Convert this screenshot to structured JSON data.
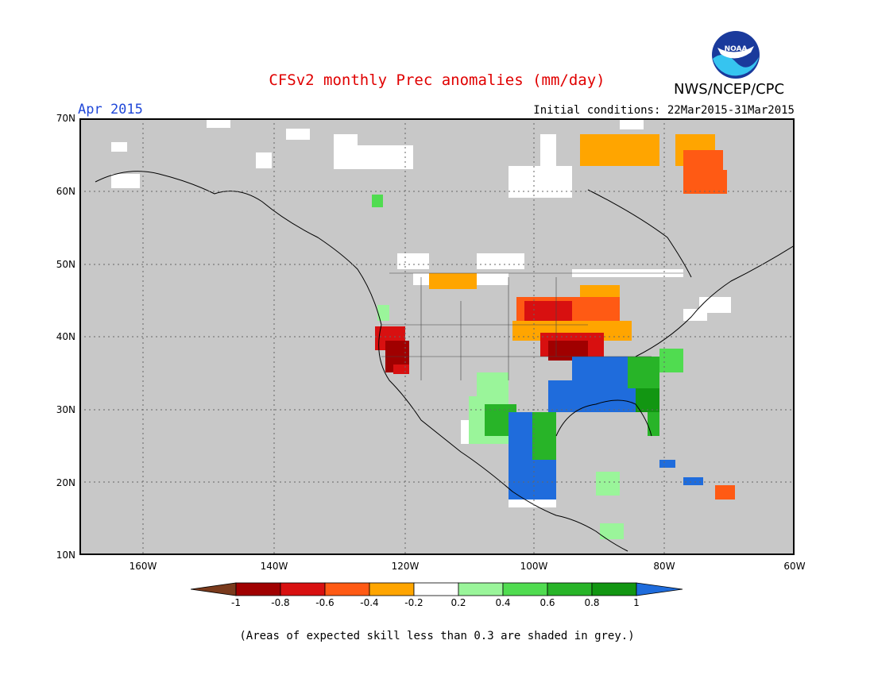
{
  "title": "CFSv2 monthly Prec anomalies (mm/day)",
  "target_month": "Apr 2015",
  "agency": "NWS/NCEP/CPC",
  "initial_conditions": "Initial conditions: 22Mar2015-31Mar2015",
  "logo_text": "NOAA",
  "latitude_labels": [
    "70N",
    "60N",
    "50N",
    "40N",
    "30N",
    "20N",
    "10N"
  ],
  "longitude_labels": [
    "160W",
    "140W",
    "120W",
    "100W",
    "80W",
    "60W"
  ],
  "colorbar": {
    "tick_labels": [
      "-1",
      "-0.8",
      "-0.6",
      "-0.4",
      "-0.2",
      "0.2",
      "0.4",
      "0.6",
      "0.8",
      "1"
    ],
    "colors": [
      "#7a3a1c",
      "#a00000",
      "#d81010",
      "#ff5a14",
      "#ffa500",
      "#ffffff",
      "#9af59a",
      "#50dc50",
      "#28b428",
      "#129612",
      "#1f6cdc"
    ]
  },
  "skill_note": "(Areas of expected skill less than 0.3 are shaded in grey.)",
  "colors": {
    "grey_mask": "#c8c8c8",
    "title": "#e00000",
    "month": "#1f47d8"
  }
}
